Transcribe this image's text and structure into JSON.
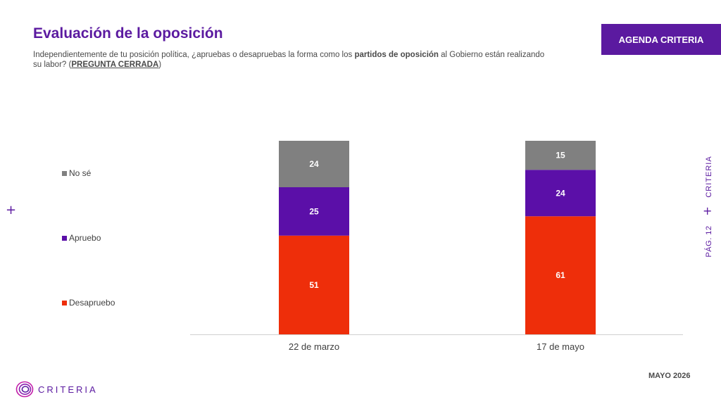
{
  "header": {
    "title": "Evaluación de la oposición",
    "subtitle_part1": "Independientemente de tu posición política, ¿apruebas o desapruebas la forma como los ",
    "subtitle_bold": "partidos de oposición",
    "subtitle_part2": " al Gobierno están realizando su labor?  (",
    "subtitle_underline": "PREGUNTA CERRADA",
    "subtitle_part3": ")",
    "agenda_label": "AGENDA CRITERIA"
  },
  "side": {
    "brand": "CRITERIA",
    "page": "PÁG. 12"
  },
  "footer": {
    "logo_text": "CRITERIA",
    "date": "MAYO 2026"
  },
  "colors": {
    "accent": "#5b1aa0",
    "no_se": "#808080",
    "apruebo": "#5b0fa8",
    "desapruebo": "#ee2e0a"
  },
  "chart_data": {
    "type": "bar",
    "stacked": true,
    "categories": [
      "22 de marzo",
      "17 de mayo"
    ],
    "series": [
      {
        "name": "Desapruebo",
        "values": [
          51,
          61
        ],
        "color": "#ee2e0a"
      },
      {
        "name": "Apruebo",
        "values": [
          25,
          24
        ],
        "color": "#5b0fa8"
      },
      {
        "name": "No sé",
        "values": [
          24,
          15
        ],
        "color": "#808080"
      }
    ],
    "ylim": [
      0,
      100
    ],
    "legend": "left",
    "grid": false
  }
}
